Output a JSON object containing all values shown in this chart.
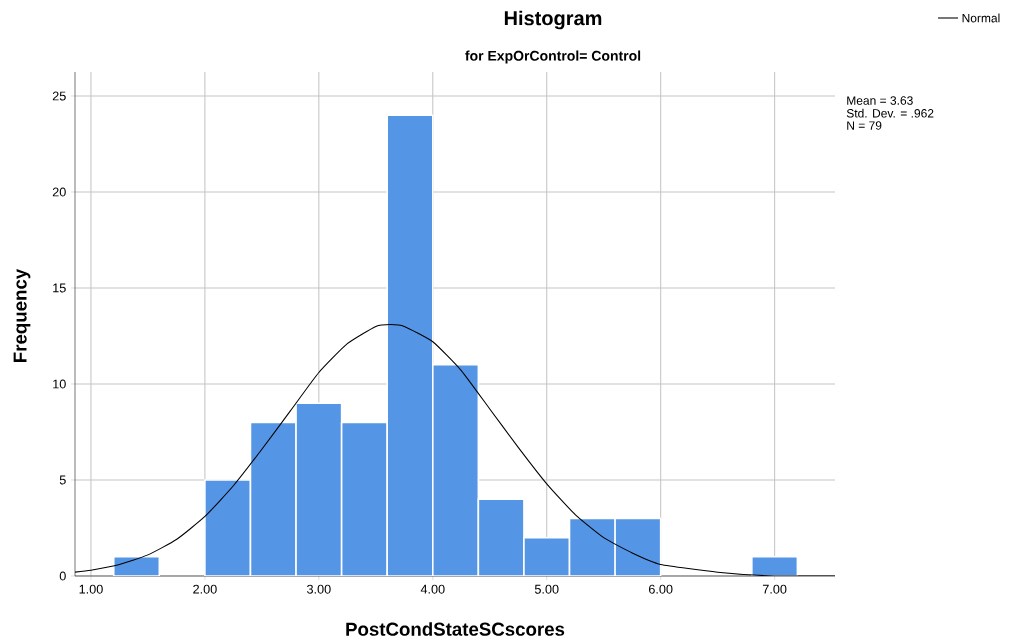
{
  "chart_data": {
    "type": "histogram",
    "title": "Histogram",
    "subtitle": "for ExpOrControl= Control",
    "xlabel": "PostCondStateSCscores",
    "ylabel": "Frequency",
    "bins": [
      1.2,
      1.6,
      2.0,
      2.4,
      2.8,
      3.2,
      3.6,
      4.0,
      4.4,
      4.8,
      5.2,
      5.6,
      6.0,
      6.4,
      6.8,
      7.2
    ],
    "values": [
      1,
      0,
      5,
      8,
      9,
      8,
      24,
      11,
      4,
      2,
      3,
      3,
      0,
      0,
      1
    ],
    "color": "#5595e5",
    "series": [
      {
        "type": "line",
        "name": "Normal",
        "color": "#000000",
        "x": [
          0.86,
          1.0,
          1.25,
          1.5,
          1.75,
          2.0,
          2.25,
          2.5,
          2.75,
          3.0,
          3.25,
          3.5,
          3.63,
          3.75,
          4.0,
          4.25,
          4.5,
          4.75,
          5.0,
          5.25,
          5.5,
          5.75,
          6.0,
          6.5,
          7.0,
          7.53
        ],
        "values": [
          0.2,
          0.3,
          0.6,
          1.1,
          1.9,
          3.1,
          4.7,
          6.6,
          8.6,
          10.6,
          12.1,
          13.0,
          13.1,
          13.0,
          12.2,
          10.7,
          8.7,
          6.7,
          4.8,
          3.2,
          2.0,
          1.2,
          0.6,
          0.2,
          0.0,
          0.0
        ]
      }
    ],
    "xlim": [
      0.86,
      7.53
    ],
    "ylim": [
      0,
      26.25
    ],
    "xticks": [
      {
        "value": 1,
        "label": "1.00"
      },
      {
        "value": 2,
        "label": "2.00"
      },
      {
        "value": 3,
        "label": "3.00"
      },
      {
        "value": 4,
        "label": "4.00"
      },
      {
        "value": 5,
        "label": "5.00"
      },
      {
        "value": 6,
        "label": "6.00"
      },
      {
        "value": 7,
        "label": "7.00"
      }
    ],
    "yticks": [
      0,
      5,
      10,
      15,
      20,
      25
    ],
    "grid": true,
    "legend": "top right",
    "annotations": [
      "Mean = 3.63",
      "Std. Dev. = .962",
      "N = 79"
    ]
  }
}
